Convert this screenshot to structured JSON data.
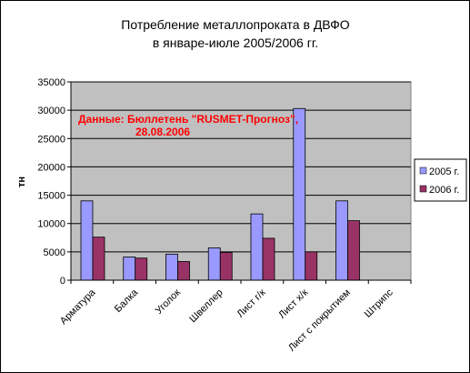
{
  "chart_data": {
    "type": "bar",
    "title": [
      "Потребление металлопроката в ДВФО",
      "в январе-июле 2005/2006 гг."
    ],
    "ylabel": "тн",
    "xlabel": "",
    "ylim": [
      0,
      35000
    ],
    "yticks": [
      "0",
      "5000",
      "10000",
      "15000",
      "20000",
      "25000",
      "30000",
      "35000"
    ],
    "categories": [
      "Арматура",
      "Балка",
      "Уголок",
      "Швеллер",
      "Лист г/к",
      "Лист х/к",
      "Лист с покрытием",
      "Штрипс"
    ],
    "series": [
      {
        "name": "2005 г.",
        "color": "#9999ff",
        "values": [
          14000,
          4100,
          4600,
          5700,
          11700,
          30300,
          14000,
          0
        ]
      },
      {
        "name": "2006 г.",
        "color": "#993366",
        "values": [
          7600,
          3900,
          3300,
          4900,
          7400,
          5000,
          10500,
          0
        ]
      }
    ],
    "plot_background": "#c0c0c0",
    "grid": "horizontal",
    "legend_position": "right",
    "annotation": [
      "Данные: Бюллетень \"RUSMET-Прогноз\",",
      "28.08.2006"
    ],
    "annotation_color": "#ff0000"
  }
}
